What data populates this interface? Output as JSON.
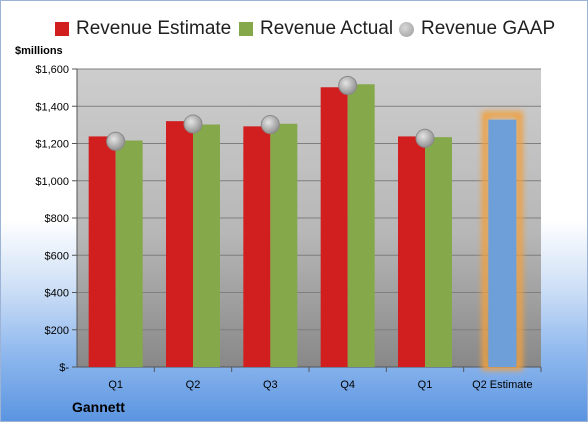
{
  "legend": [
    {
      "label": "Revenue Estimate",
      "color": "#d11f1f",
      "marker": "square"
    },
    {
      "label": "Revenue Actual",
      "color": "#84a84a",
      "marker": "square"
    },
    {
      "label": "Revenue GAAP",
      "color": "#a8a8a8",
      "marker": "circle"
    }
  ],
  "unit_label": "$millions",
  "company": "Gannett",
  "chart_data": {
    "type": "bar",
    "categories": [
      "Q1",
      "Q2",
      "Q3",
      "Q4",
      "Q1",
      "Q2 Estimate"
    ],
    "yticks": [
      "$-",
      "$200",
      "$400",
      "$600",
      "$800",
      "$1,000",
      "$1,200",
      "$1,400",
      "$1,600"
    ],
    "ylim": [
      0,
      1600
    ],
    "grid": true,
    "legend_position": "top",
    "series": [
      {
        "name": "Revenue Estimate",
        "color": "#d11f1f",
        "values": [
          1238,
          1320,
          1292,
          1502,
          1238,
          null
        ]
      },
      {
        "name": "Revenue Actual",
        "color": "#84a84a",
        "values": [
          1216,
          1302,
          1306,
          1518,
          1234,
          null
        ]
      },
      {
        "name": "Revenue GAAP",
        "color": "#a8a8a8",
        "values": [
          1212,
          1305,
          1302,
          1512,
          1228,
          null
        ]
      }
    ],
    "forecast": {
      "category": "Q2 Estimate",
      "value": 1328,
      "color": "#6f9fd8",
      "highlight": "#f0a040"
    }
  }
}
